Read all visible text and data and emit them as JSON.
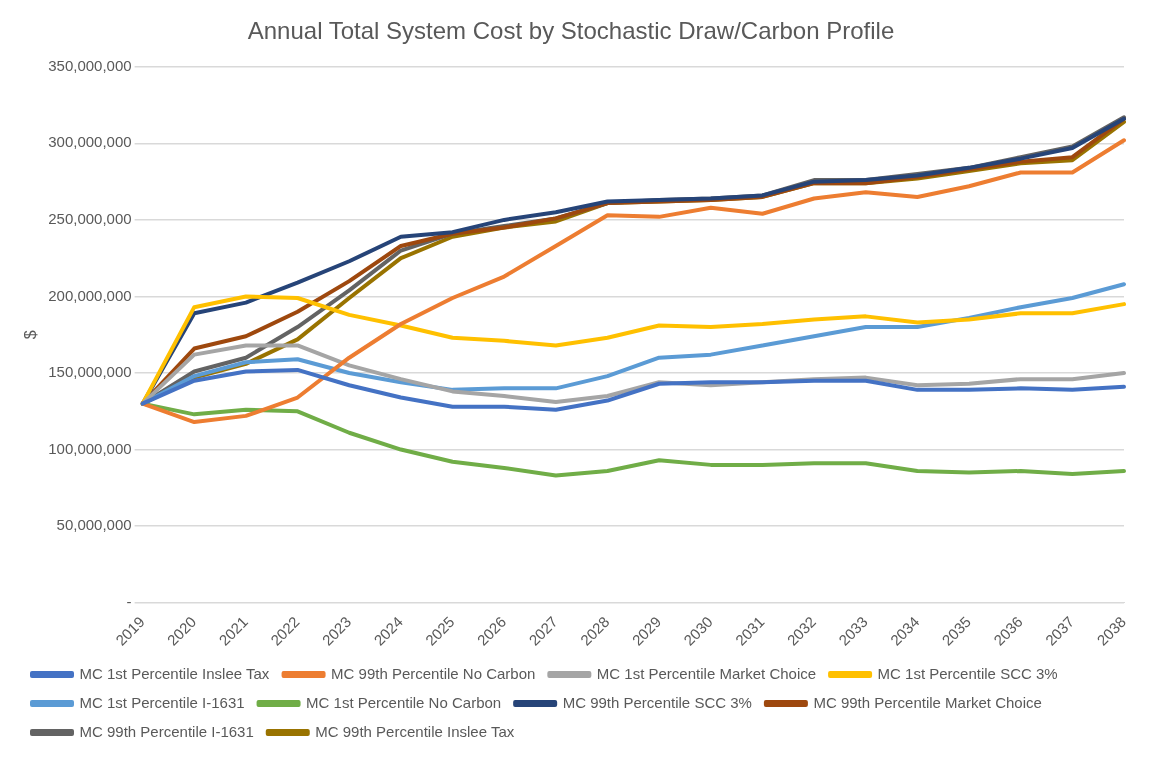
{
  "chart_data": {
    "type": "line",
    "title": "Annual Total System Cost by Stochastic Draw/Carbon Profile",
    "ylabel": "$",
    "categories": [
      "2019",
      "2020",
      "2021",
      "2022",
      "2023",
      "2024",
      "2025",
      "2026",
      "2027",
      "2028",
      "2029",
      "2030",
      "2031",
      "2032",
      "2033",
      "2034",
      "2035",
      "2036",
      "2037",
      "2038"
    ],
    "ylim": [
      0,
      350000000
    ],
    "yticks": [
      {
        "value": 0,
        "label": "-"
      },
      {
        "value": 50000000,
        "label": "50,000,000"
      },
      {
        "value": 100000000,
        "label": "100,000,000"
      },
      {
        "value": 150000000,
        "label": "150,000,000"
      },
      {
        "value": 200000000,
        "label": "200,000,000"
      },
      {
        "value": 250000000,
        "label": "250,000,000"
      },
      {
        "value": 300000000,
        "label": "300,000,000"
      },
      {
        "value": 350000000,
        "label": "350,000,000"
      }
    ],
    "grid": "y",
    "legend": "bottom",
    "marker": "none",
    "line_style": "solid",
    "series": [
      {
        "name": "MC 1st Percentile Inslee Tax",
        "color": "#4472c4",
        "values": [
          130000000,
          145000000,
          151000000,
          152000000,
          142000000,
          134000000,
          128000000,
          128000000,
          126000000,
          132000000,
          143000000,
          144000000,
          144000000,
          145000000,
          145000000,
          139000000,
          139000000,
          140000000,
          139000000,
          141000000
        ]
      },
      {
        "name": "MC 99th Percentile No Carbon",
        "color": "#ed7d31",
        "values": [
          130000000,
          118000000,
          122000000,
          134000000,
          160000000,
          182000000,
          199000000,
          213000000,
          233000000,
          253000000,
          252000000,
          258000000,
          254000000,
          264000000,
          268000000,
          265000000,
          272000000,
          281000000,
          281000000,
          302000000
        ]
      },
      {
        "name": "MC 1st Percentile Market Choice",
        "color": "#a5a5a5",
        "values": [
          130000000,
          162000000,
          168000000,
          168000000,
          155000000,
          146000000,
          138000000,
          135000000,
          131000000,
          135000000,
          144000000,
          142000000,
          144000000,
          146000000,
          147000000,
          142000000,
          143000000,
          146000000,
          146000000,
          150000000
        ]
      },
      {
        "name": "MC 1st Percentile SCC 3%",
        "color": "#ffc000",
        "values": [
          130000000,
          193000000,
          200000000,
          199000000,
          188000000,
          181000000,
          173000000,
          171000000,
          168000000,
          173000000,
          181000000,
          180000000,
          182000000,
          185000000,
          187000000,
          183000000,
          185000000,
          189000000,
          189000000,
          195000000
        ]
      },
      {
        "name": "MC 1st Percentile I-1631",
        "color": "#5b9bd5",
        "values": [
          130000000,
          148000000,
          157000000,
          159000000,
          150000000,
          144000000,
          139000000,
          140000000,
          140000000,
          148000000,
          160000000,
          162000000,
          168000000,
          174000000,
          180000000,
          180000000,
          186000000,
          193000000,
          199000000,
          208000000
        ]
      },
      {
        "name": "MC 1st Percentile No Carbon",
        "color": "#70ad47",
        "values": [
          130000000,
          123000000,
          126000000,
          125000000,
          111000000,
          100000000,
          92000000,
          88000000,
          83000000,
          86000000,
          93000000,
          90000000,
          90000000,
          91000000,
          91000000,
          86000000,
          85000000,
          86000000,
          84000000,
          86000000
        ]
      },
      {
        "name": "MC 99th Percentile SCC 3%",
        "color": "#264478",
        "values": [
          130000000,
          189000000,
          196000000,
          209000000,
          223000000,
          239000000,
          242000000,
          250000000,
          255000000,
          262000000,
          263000000,
          264000000,
          266000000,
          275000000,
          276000000,
          279000000,
          284000000,
          290000000,
          297000000,
          316000000
        ]
      },
      {
        "name": "MC 99th Percentile Market Choice",
        "color": "#9e480e",
        "values": [
          130000000,
          166000000,
          174000000,
          190000000,
          210000000,
          233000000,
          241000000,
          245000000,
          251000000,
          261000000,
          262000000,
          263000000,
          265000000,
          274000000,
          274000000,
          278000000,
          283000000,
          288000000,
          291000000,
          316000000
        ]
      },
      {
        "name": "MC 99th Percentile I-1631",
        "color": "#636363",
        "values": [
          130000000,
          151000000,
          160000000,
          180000000,
          204000000,
          230000000,
          241000000,
          246000000,
          251000000,
          261000000,
          263000000,
          264000000,
          266000000,
          276000000,
          276000000,
          280000000,
          284000000,
          291000000,
          298000000,
          317000000
        ]
      },
      {
        "name": "MC 99th Percentile Inslee Tax",
        "color": "#997300",
        "values": [
          130000000,
          147000000,
          156000000,
          172000000,
          199000000,
          225000000,
          239000000,
          245000000,
          249000000,
          261000000,
          262000000,
          263000000,
          265000000,
          274000000,
          274000000,
          277000000,
          282000000,
          287000000,
          289000000,
          314000000
        ]
      }
    ]
  }
}
